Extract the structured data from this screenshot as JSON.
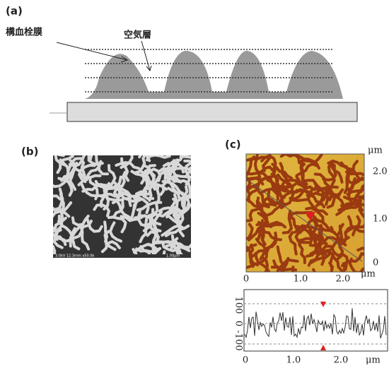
{
  "panel_a": {
    "label": "(a)",
    "film_label": "構血栓膜",
    "air_label": "空気層"
  },
  "panel_b": {
    "label": "(b)",
    "sem_caption": "3.0kV 12.3mm x50.0k",
    "scale_label": "1.00μm"
  },
  "panel_c": {
    "label": "(c)",
    "afm": {
      "y_unit": "μm",
      "y_ticks": [
        "2.0",
        "1.0",
        "0"
      ],
      "x_ticks": [
        "0",
        "1.0",
        "2.0"
      ],
      "x_unit": "μm"
    },
    "profile": {
      "y_ticks": [
        "100",
        "0",
        "-100"
      ],
      "x_ticks": [
        "0",
        "1.0",
        "2.0"
      ],
      "x_unit": "μm"
    }
  }
}
